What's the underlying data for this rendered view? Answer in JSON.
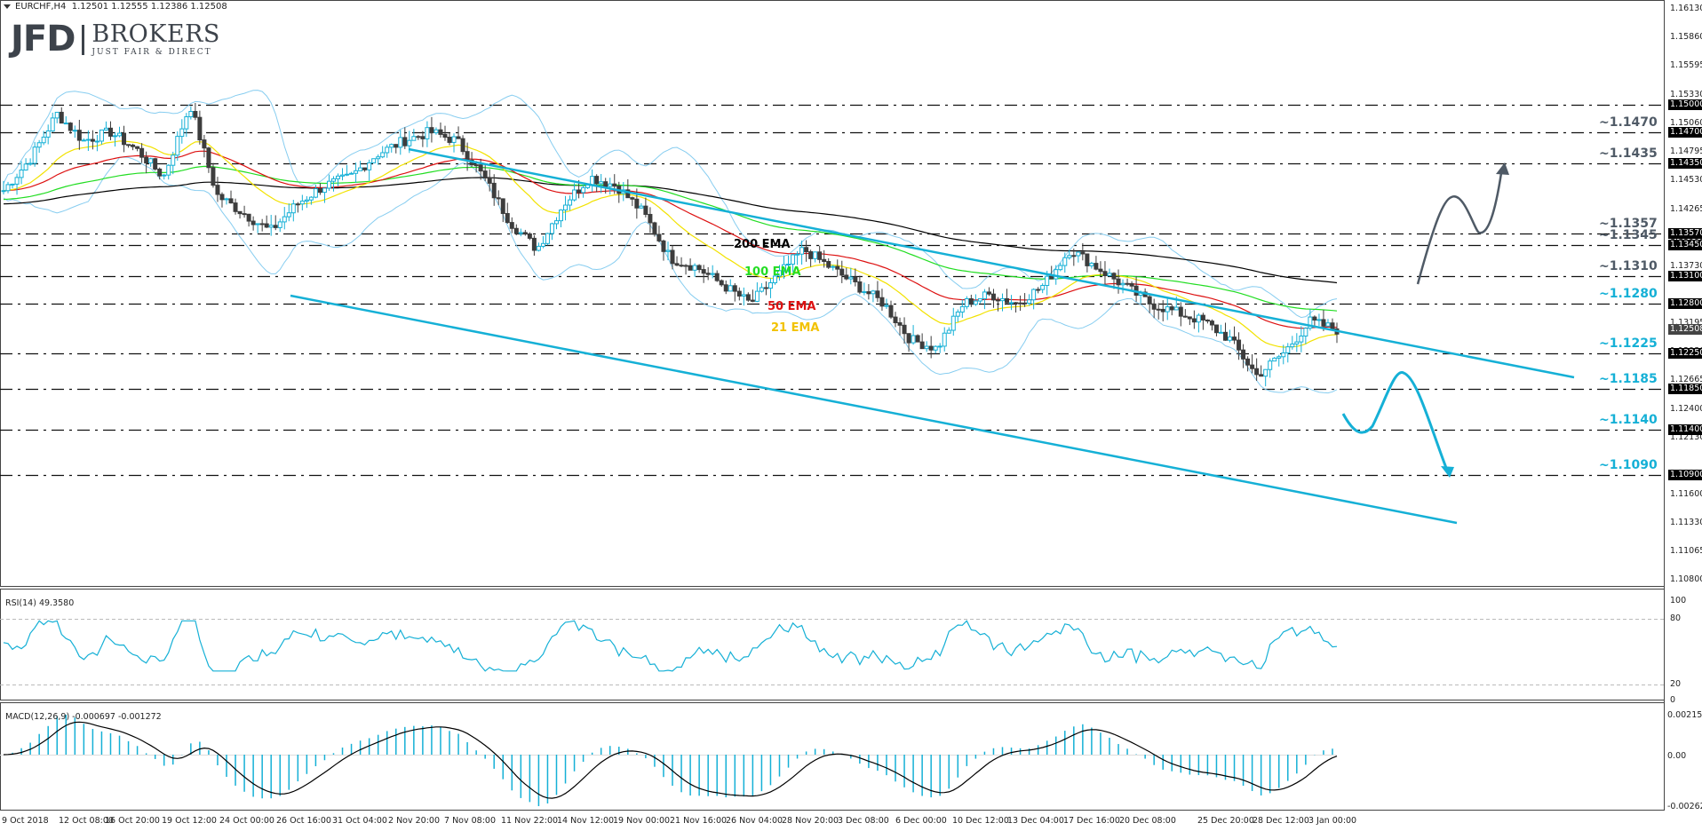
{
  "header": {
    "symbol": "EURCHF,H4",
    "ohlc": "1.12501 1.12555 1.12386 1.12508"
  },
  "logo": {
    "brand": "JFD",
    "name": "BROKERS",
    "tagline": "JUST FAIR & DIRECT"
  },
  "price_axis": {
    "ticks": [
      "1.16130",
      "1.15860",
      "1.15595",
      "1.15330",
      "1.15060",
      "1.14795",
      "1.14530",
      "1.14265",
      "1.13995",
      "1.13730",
      "1.13195",
      "1.12930",
      "1.12665",
      "1.12400",
      "1.12130",
      "1.11600",
      "1.11330",
      "1.11065",
      "1.10800"
    ],
    "level_boxes": [
      "1.15000",
      "1.14700",
      "1.14350",
      "1.13570",
      "1.13450",
      "1.13100",
      "1.12800",
      "1.12250",
      "1.11850",
      "1.11400",
      "1.10900"
    ],
    "current_price": "1.12508"
  },
  "levels": [
    {
      "label": "~1.1470",
      "value": 1.147,
      "color": "#4f5a66"
    },
    {
      "label": "~1.1435",
      "value": 1.1435,
      "color": "#4f5a66"
    },
    {
      "label": "~1.1357",
      "value": 1.1357,
      "color": "#4f5a66"
    },
    {
      "label": "~1.1345",
      "value": 1.1345,
      "color": "#4f5a66"
    },
    {
      "label": "~1.1310",
      "value": 1.131,
      "color": "#4f5a66"
    },
    {
      "label": "~1.1280",
      "value": 1.128,
      "color": "#15b0d6"
    },
    {
      "label": "~1.1225",
      "value": 1.1225,
      "color": "#15b0d6"
    },
    {
      "label": "~1.1185",
      "value": 1.1185,
      "color": "#15b0d6"
    },
    {
      "label": "~1.1140",
      "value": 1.114,
      "color": "#15b0d6"
    },
    {
      "label": "~1.1090",
      "value": 1.109,
      "color": "#15b0d6"
    }
  ],
  "ema_labels": {
    "ema200": "200 EMA",
    "ema100": "100 EMA",
    "ema50": "50 EMA",
    "ema21": "21 EMA"
  },
  "rsi": {
    "label": "RSI(14) 49.3580",
    "axis": [
      "100",
      "80",
      "20",
      "0"
    ]
  },
  "macd": {
    "label": "MACD(12,26,9) -0.000697 -0.001272",
    "axis": [
      "0.002154",
      "0.00",
      "-0.00262"
    ]
  },
  "time_axis": [
    "9 Oct 2018",
    "12 Oct 08:00",
    "16 Oct 20:00",
    "19 Oct 12:00",
    "24 Oct 00:00",
    "26 Oct 16:00",
    "31 Oct 04:00",
    "2 Nov 20:00",
    "7 Nov 08:00",
    "11 Nov 22:00",
    "14 Nov 12:00",
    "19 Nov 00:00",
    "21 Nov 16:00",
    "26 Nov 04:00",
    "28 Nov 20:00",
    "3 Dec 08:00",
    "6 Dec 00:00",
    "10 Dec 12:00",
    "13 Dec 04:00",
    "17 Dec 16:00",
    "20 Dec 08:00",
    "25 Dec 20:00",
    "28 Dec 12:00",
    "3 Jan 00:00"
  ],
  "colors": {
    "bull_candle": "#15b0d6",
    "bear_candle": "#3d3d3d",
    "channel": "#15b0d6",
    "ema200": "#000000",
    "ema100": "#22dd22",
    "ema50": "#dd1111",
    "ema21": "#f2e200",
    "bollinger": "#87cdf0",
    "scenario_up": "#4f5a66",
    "scenario_down": "#15b0d6"
  },
  "chart_data": {
    "type": "candlestick",
    "title": "EURCHF, H4",
    "ohlc_last": {
      "open": 1.12501,
      "high": 1.12555,
      "low": 1.12386,
      "close": 1.12508
    },
    "ylim": [
      1.108,
      1.1613
    ],
    "x_ticks": [
      "9 Oct 2018",
      "12 Oct 08:00",
      "16 Oct 20:00",
      "19 Oct 12:00",
      "24 Oct 00:00",
      "26 Oct 16:00",
      "31 Oct 04:00",
      "2 Nov 20:00",
      "7 Nov 08:00",
      "11 Nov 22:00",
      "14 Nov 12:00",
      "19 Nov 00:00",
      "21 Nov 16:00",
      "26 Nov 04:00",
      "28 Nov 20:00",
      "3 Dec 08:00",
      "6 Dec 00:00",
      "10 Dec 12:00",
      "13 Dec 04:00",
      "17 Dec 16:00",
      "20 Dec 08:00",
      "25 Dec 20:00",
      "28 Dec 12:00",
      "3 Jan 00:00"
    ],
    "horizontal_levels": [
      1.15,
      1.147,
      1.1435,
      1.1357,
      1.1345,
      1.131,
      1.128,
      1.1225,
      1.1185,
      1.114,
      1.109
    ],
    "indicators": [
      "EMA 21",
      "EMA 50",
      "EMA 100",
      "EMA 200",
      "Bollinger Bands",
      "RSI(14)",
      "MACD(12,26,9)"
    ],
    "approx_close_path": [
      1.1405,
      1.144,
      1.149,
      1.146,
      1.147,
      1.145,
      1.142,
      1.15,
      1.14,
      1.138,
      1.136,
      1.139,
      1.141,
      1.142,
      1.1445,
      1.146,
      1.147,
      1.146,
      1.142,
      1.137,
      1.134,
      1.139,
      1.142,
      1.141,
      1.138,
      1.133,
      1.132,
      1.13,
      1.128,
      1.131,
      1.134,
      1.132,
      1.13,
      1.128,
      1.124,
      1.123,
      1.128,
      1.129,
      1.128,
      1.13,
      1.134,
      1.132,
      1.13,
      1.128,
      1.127,
      1.126,
      1.124,
      1.12,
      1.1225,
      1.126,
      1.1251
    ],
    "channel": {
      "upper": [
        [
          0.24,
          1.148
        ],
        [
          0.93,
          1.1284
        ]
      ],
      "lower": [
        [
          0.17,
          1.135
        ],
        [
          0.86,
          1.1145
        ]
      ]
    },
    "rsi": {
      "last": 49.358,
      "levels": [
        20,
        80
      ],
      "range": [
        0,
        100
      ]
    },
    "macd": {
      "main": -0.000697,
      "signal": -0.001272,
      "range": [
        -0.00262,
        0.002154
      ]
    },
    "annotations": [
      "200 EMA",
      "100 EMA",
      "50 EMA",
      "21 EMA",
      "Bullish scenario arrow toward ~1.1470",
      "Bearish scenario arrow toward ~1.1185"
    ]
  }
}
